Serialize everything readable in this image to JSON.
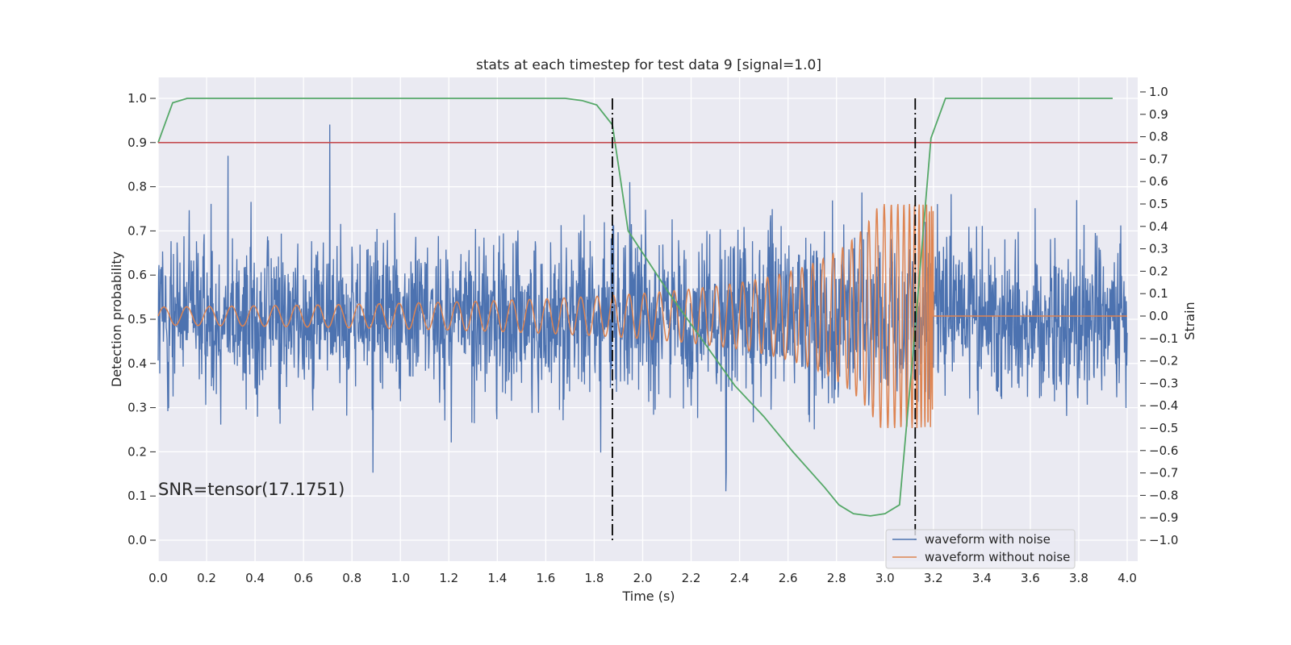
{
  "chart_data": {
    "type": "line",
    "title": "stats at each timestep for test data 9 [signal=1.0]",
    "xlabel": "Time (s)",
    "ylabel_left": "Detection probability",
    "ylabel_right": "Strain",
    "xlim": [
      0.0,
      4.0
    ],
    "ylim_left": [
      0.0,
      1.0
    ],
    "ylim_right": [
      -1.0,
      1.0
    ],
    "x_ticks": [
      "0.0",
      "0.2",
      "0.4",
      "0.6",
      "0.8",
      "1.0",
      "1.2",
      "1.4",
      "1.6",
      "1.8",
      "2.0",
      "2.2",
      "2.4",
      "2.6",
      "2.8",
      "3.0",
      "3.2",
      "3.4",
      "3.6",
      "3.8",
      "4.0"
    ],
    "y_ticks_left": [
      "0.0",
      "0.1",
      "0.2",
      "0.3",
      "0.4",
      "0.5",
      "0.6",
      "0.7",
      "0.8",
      "0.9",
      "1.0"
    ],
    "y_ticks_right": [
      "−1.0",
      "−0.9",
      "−0.8",
      "−0.7",
      "−0.6",
      "−0.5",
      "−0.4",
      "−0.3",
      "−0.2",
      "−0.1",
      "0.0",
      "0.1",
      "0.2",
      "0.3",
      "0.4",
      "0.5",
      "0.6",
      "0.7",
      "0.8",
      "0.9",
      "1.0"
    ],
    "grid": true,
    "legend_position": "lower-right",
    "annotation": "SNR=tensor(17.1751)",
    "threshold": {
      "value": 0.9,
      "color": "#c44e52"
    },
    "vertical_markers": {
      "x": [
        1.875,
        3.125
      ],
      "color": "#000000",
      "style": "dash-dot"
    },
    "detection_probability": {
      "color": "#55a868",
      "x": [
        0.0,
        0.06,
        0.12,
        0.2,
        0.4,
        0.6,
        0.8,
        1.0,
        1.2,
        1.4,
        1.6,
        1.68,
        1.75,
        1.81,
        1.875,
        1.94,
        2.0,
        2.12,
        2.25,
        2.38,
        2.5,
        2.62,
        2.75,
        2.81,
        2.87,
        2.94,
        3.0,
        3.06,
        3.12,
        3.19,
        3.25,
        3.31,
        3.5,
        3.75,
        3.94
      ],
      "y": [
        0.9,
        0.99,
        1.0,
        1.0,
        1.0,
        1.0,
        1.0,
        1.0,
        1.0,
        1.0,
        1.0,
        1.0,
        0.995,
        0.985,
        0.94,
        0.7,
        0.65,
        0.55,
        0.45,
        0.35,
        0.28,
        0.2,
        0.12,
        0.08,
        0.06,
        0.055,
        0.06,
        0.08,
        0.45,
        0.91,
        1.0,
        1.0,
        1.0,
        1.0,
        1.0
      ]
    },
    "series": [
      {
        "name": "waveform with noise",
        "color": "#4c72b0",
        "axis": "right",
        "kind": "noise",
        "range": [
          -1.0,
          1.0
        ]
      },
      {
        "name": "waveform without noise",
        "color": "#dd8452",
        "axis": "right",
        "kind": "chirp",
        "amplitude_start": 0.04,
        "amplitude_peak": 0.5,
        "merger_time": 3.2,
        "post_merger_value": 0.0
      }
    ]
  }
}
